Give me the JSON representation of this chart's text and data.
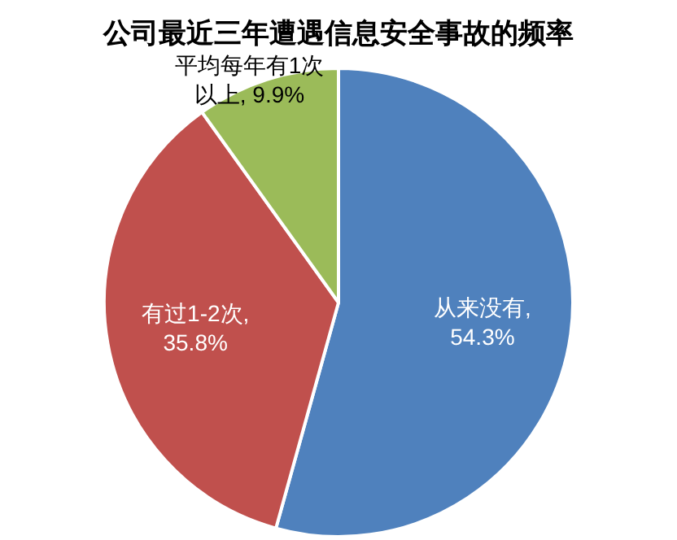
{
  "chart_data": {
    "type": "pie",
    "title": "公司最近三年遭遇信息安全事故的频率",
    "categories": [
      "从来没有",
      "有过1-2次",
      "平均每年有1次以上"
    ],
    "values": [
      54.3,
      35.8,
      9.9
    ],
    "colors": [
      "#4f81bd",
      "#c0504d",
      "#9bbb59"
    ],
    "value_labels": [
      ", 54.3%",
      ", 35.8%",
      ", 9.9%"
    ],
    "legend": false
  }
}
